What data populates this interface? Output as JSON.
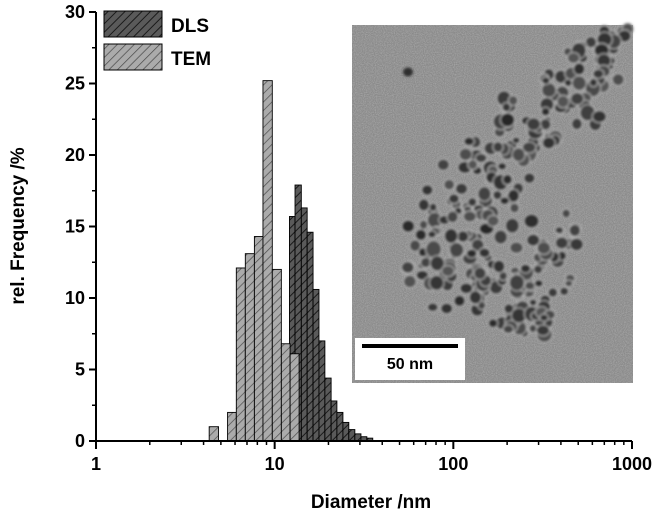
{
  "chart_data": {
    "type": "bar",
    "xlabel": "Diameter /nm",
    "ylabel": "rel. Frequency /%",
    "xscale": "log",
    "xlim": [
      1,
      1000
    ],
    "ylim": [
      0,
      30
    ],
    "x_ticks": [
      "1",
      "10",
      "100",
      "1000"
    ],
    "y_ticks": [
      "0",
      "5",
      "10",
      "15",
      "20",
      "25",
      "30"
    ],
    "legend_position": "top-left",
    "grid": false,
    "series": [
      {
        "name": "DLS",
        "color": "#555555",
        "hatch": "diagonal",
        "bins": [
          {
            "x0": 12.1,
            "x1": 13.0,
            "value": 15.7
          },
          {
            "x0": 13.0,
            "x1": 14.1,
            "value": 17.9
          },
          {
            "x0": 14.1,
            "x1": 15.2,
            "value": 16.3
          },
          {
            "x0": 15.2,
            "x1": 16.4,
            "value": 14.6
          },
          {
            "x0": 16.4,
            "x1": 17.7,
            "value": 10.6
          },
          {
            "x0": 17.7,
            "x1": 19.1,
            "value": 7.0
          },
          {
            "x0": 19.1,
            "x1": 20.7,
            "value": 4.4
          },
          {
            "x0": 20.7,
            "x1": 22.3,
            "value": 2.8
          },
          {
            "x0": 22.3,
            "x1": 24.1,
            "value": 2.0
          },
          {
            "x0": 24.1,
            "x1": 26.0,
            "value": 1.3
          },
          {
            "x0": 26.0,
            "x1": 28.1,
            "value": 0.8
          },
          {
            "x0": 28.1,
            "x1": 30.4,
            "value": 0.5
          },
          {
            "x0": 30.4,
            "x1": 32.8,
            "value": 0.3
          },
          {
            "x0": 32.8,
            "x1": 35.4,
            "value": 0.2
          }
        ]
      },
      {
        "name": "TEM",
        "color": "#a8a8a8",
        "hatch": "diagonal",
        "bins": [
          {
            "x0": 4.3,
            "x1": 4.85,
            "value": 1.0
          },
          {
            "x0": 5.45,
            "x1": 6.1,
            "value": 2.0
          },
          {
            "x0": 6.1,
            "x1": 6.85,
            "value": 12.1
          },
          {
            "x0": 6.85,
            "x1": 7.7,
            "value": 13.1
          },
          {
            "x0": 7.7,
            "x1": 8.6,
            "value": 14.3
          },
          {
            "x0": 8.6,
            "x1": 9.7,
            "value": 25.2
          },
          {
            "x0": 9.7,
            "x1": 10.9,
            "value": 12.0
          },
          {
            "x0": 10.9,
            "x1": 12.2,
            "value": 6.8
          },
          {
            "x0": 12.2,
            "x1": 13.7,
            "value": 6.1
          }
        ]
      }
    ],
    "inset": {
      "description_shown": "TEM micrograph of nanoparticles",
      "scale_bar_label": "50 nm"
    }
  }
}
